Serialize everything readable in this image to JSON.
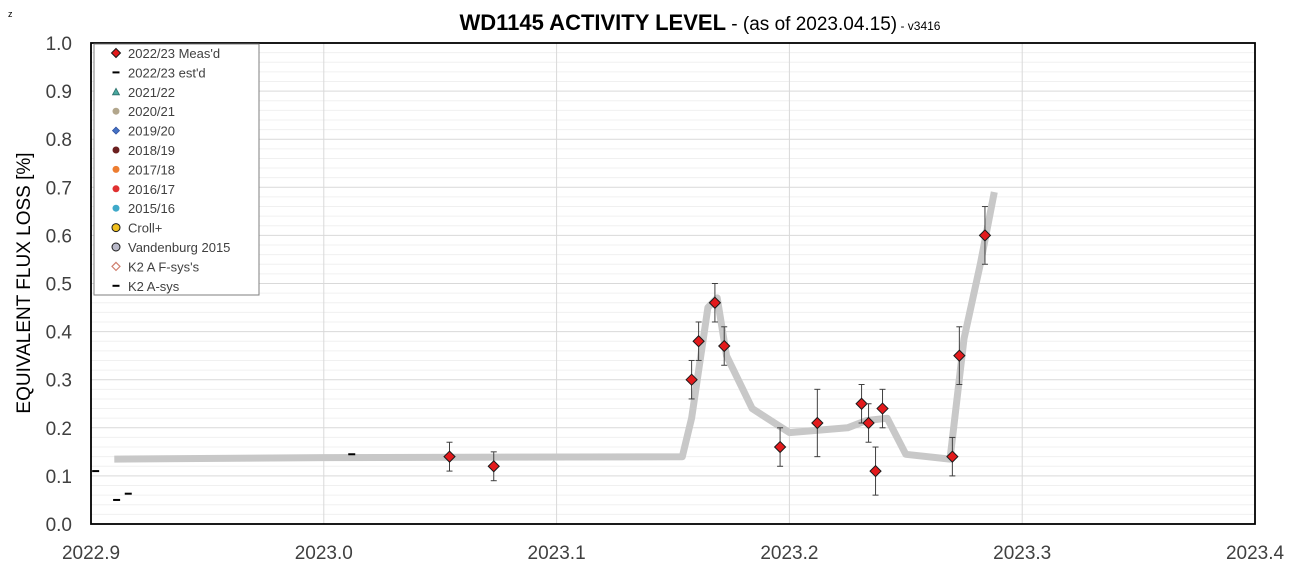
{
  "corner_mark": "z",
  "title": {
    "main": "WD1145 ACTIVITY LEVEL",
    "dash": " - ",
    "sub": "(as of 2023.04.15)",
    "version": " - v3416"
  },
  "colors": {
    "marker_fill": "#e31a1c",
    "marker_stroke": "#1a1a1a",
    "trend": "#c8c8c8",
    "grid_major": "#d9d9d9",
    "grid_minor": "#f0f0f0"
  },
  "chart_data": {
    "type": "scatter",
    "xlabel": "",
    "ylabel": "EQUIVALENT FLUX LOSS [%]",
    "xlim": [
      2022.9,
      2023.4
    ],
    "ylim": [
      0.0,
      1.0
    ],
    "x_ticks": [
      "2022.9",
      "2023.0",
      "2023.1",
      "2023.2",
      "2023.3",
      "2023.4"
    ],
    "y_ticks": [
      "0.0",
      "0.1",
      "0.2",
      "0.3",
      "0.4",
      "0.5",
      "0.6",
      "0.7",
      "0.8",
      "0.9",
      "1.0"
    ],
    "grid": true,
    "legend_position": "top-left",
    "legend": [
      {
        "label": "2022/23 Meas'd",
        "marker": "diamond",
        "color": "#e31a1c"
      },
      {
        "label": "2022/23 est'd",
        "marker": "dash",
        "color": "#000000"
      },
      {
        "label": "2021/22",
        "marker": "triangle",
        "color": "#4aa8a0"
      },
      {
        "label": "2020/21",
        "marker": "circle",
        "color": "#b2a68c"
      },
      {
        "label": "2019/20",
        "marker": "small-diamond",
        "color": "#4472c4"
      },
      {
        "label": "2018/19",
        "marker": "circle",
        "color": "#6b1f1f"
      },
      {
        "label": "2017/18",
        "marker": "circle",
        "color": "#ed7d31"
      },
      {
        "label": "2016/17",
        "marker": "circle",
        "color": "#e03030"
      },
      {
        "label": "2015/16",
        "marker": "circle",
        "color": "#3fa9c9"
      },
      {
        "label": "Croll+",
        "marker": "circle-outlined",
        "color": "#f0c020"
      },
      {
        "label": "Vandenburg 2015",
        "marker": "circle-outlined",
        "color": "#b8b8c8"
      },
      {
        "label": "K2 A  F-sys's",
        "marker": "open-diamond",
        "color": "#d08070"
      },
      {
        "label": "K2 A-sys",
        "marker": "dash",
        "color": "#000000"
      }
    ],
    "series": [
      {
        "name": "2022/23 Meas'd",
        "points": [
          {
            "x": 2023.054,
            "y": 0.14,
            "err": 0.03
          },
          {
            "x": 2023.073,
            "y": 0.12,
            "err": 0.03
          },
          {
            "x": 2023.158,
            "y": 0.3,
            "err": 0.04
          },
          {
            "x": 2023.161,
            "y": 0.38,
            "err": 0.04
          },
          {
            "x": 2023.168,
            "y": 0.46,
            "err": 0.04
          },
          {
            "x": 2023.172,
            "y": 0.37,
            "err": 0.04
          },
          {
            "x": 2023.196,
            "y": 0.16,
            "err": 0.04
          },
          {
            "x": 2023.212,
            "y": 0.21,
            "err": 0.07
          },
          {
            "x": 2023.231,
            "y": 0.25,
            "err": 0.04
          },
          {
            "x": 2023.234,
            "y": 0.21,
            "err": 0.04
          },
          {
            "x": 2023.237,
            "y": 0.11,
            "err": 0.05
          },
          {
            "x": 2023.24,
            "y": 0.24,
            "err": 0.04
          },
          {
            "x": 2023.27,
            "y": 0.14,
            "err": 0.04
          },
          {
            "x": 2023.273,
            "y": 0.35,
            "err": 0.06
          },
          {
            "x": 2023.284,
            "y": 0.6,
            "err": 0.06
          }
        ]
      },
      {
        "name": "2022/23 est'd",
        "points": [
          {
            "x": 2022.902,
            "y": 0.11
          },
          {
            "x": 2022.911,
            "y": 0.05
          },
          {
            "x": 2022.916,
            "y": 0.063
          },
          {
            "x": 2023.012,
            "y": 0.145
          }
        ]
      },
      {
        "name": "trend",
        "points": [
          {
            "x": 2022.91,
            "y": 0.135
          },
          {
            "x": 2023.0,
            "y": 0.138
          },
          {
            "x": 2023.154,
            "y": 0.14
          },
          {
            "x": 2023.158,
            "y": 0.22
          },
          {
            "x": 2023.165,
            "y": 0.45
          },
          {
            "x": 2023.169,
            "y": 0.47
          },
          {
            "x": 2023.173,
            "y": 0.35
          },
          {
            "x": 2023.184,
            "y": 0.24
          },
          {
            "x": 2023.2,
            "y": 0.19
          },
          {
            "x": 2023.225,
            "y": 0.2
          },
          {
            "x": 2023.233,
            "y": 0.215
          },
          {
            "x": 2023.242,
            "y": 0.22
          },
          {
            "x": 2023.25,
            "y": 0.145
          },
          {
            "x": 2023.269,
            "y": 0.135
          },
          {
            "x": 2023.275,
            "y": 0.385
          },
          {
            "x": 2023.282,
            "y": 0.54
          },
          {
            "x": 2023.288,
            "y": 0.69
          }
        ]
      }
    ]
  }
}
